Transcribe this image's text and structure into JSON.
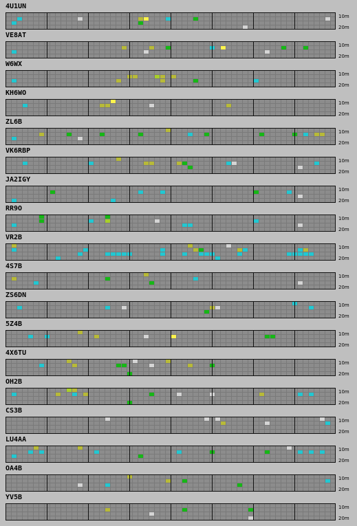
{
  "band_labels": {
    "top": "10m",
    "bottom": "20m"
  },
  "legend_colors": {
    "background": "#bfbfbf",
    "grid_cell": "#8c8c8c",
    "grid_line": "#7a7a7a",
    "grid_major": "#111111",
    "green": "#16b716",
    "yellow_green": "#a9cf2a",
    "olive": "#b8ba38",
    "cyan": "#22c8d2",
    "light_gray": "#d5d5d5",
    "bright_yellow": "#fff34d"
  },
  "stations": [
    {
      "callsign": "4U1UN",
      "cells": [
        {
          "col": 2,
          "row": 1,
          "color": "cyan"
        },
        {
          "col": 13,
          "row": 1,
          "color": "light_gray"
        },
        {
          "col": 24,
          "row": 1,
          "color": "olive"
        },
        {
          "col": 25,
          "row": 1,
          "color": "bright_yellow"
        },
        {
          "col": 29,
          "row": 1,
          "color": "cyan"
        },
        {
          "col": 34,
          "row": 1,
          "color": "green"
        },
        {
          "col": 58,
          "row": 1,
          "color": "light_gray"
        },
        {
          "col": 1,
          "row": 2,
          "color": "cyan"
        },
        {
          "col": 24,
          "row": 2,
          "color": "green"
        },
        {
          "col": 43,
          "row": 3,
          "color": "light_gray"
        },
        {
          "col": 1,
          "row": 4,
          "color": "cyan"
        },
        {
          "col": 16,
          "row": 4,
          "color": "cyan"
        },
        {
          "col": 25,
          "row": 4,
          "color": "light_gray"
        },
        {
          "col": 33,
          "row": 4,
          "color": "cyan"
        },
        {
          "col": 42,
          "row": 4,
          "color": "green"
        },
        {
          "col": 47,
          "row": 4,
          "color": "light_gray"
        },
        {
          "col": 53,
          "row": 4,
          "color": "green"
        }
      ]
    },
    {
      "callsign": "VE8AT",
      "cells": [
        {
          "col": 21,
          "row": 1,
          "color": "olive"
        },
        {
          "col": 26,
          "row": 1,
          "color": "olive"
        },
        {
          "col": 29,
          "row": 1,
          "color": "green"
        },
        {
          "col": 37,
          "row": 1,
          "color": "cyan"
        },
        {
          "col": 39,
          "row": 1,
          "color": "bright_yellow"
        },
        {
          "col": 50,
          "row": 1,
          "color": "green"
        },
        {
          "col": 54,
          "row": 1,
          "color": "green"
        },
        {
          "col": 1,
          "row": 2,
          "color": "cyan"
        },
        {
          "col": 25,
          "row": 2,
          "color": "light_gray"
        },
        {
          "col": 47,
          "row": 2,
          "color": "light_gray"
        },
        {
          "col": 40,
          "row": 4,
          "color": "green"
        },
        {
          "col": 42,
          "row": 4,
          "color": "light_gray"
        }
      ]
    },
    {
      "callsign": "W6WX",
      "cells": [
        {
          "col": 22,
          "row": 1,
          "color": "olive"
        },
        {
          "col": 23,
          "row": 1,
          "color": "olive"
        },
        {
          "col": 27,
          "row": 1,
          "color": "yellow_green"
        },
        {
          "col": 28,
          "row": 1,
          "color": "olive"
        },
        {
          "col": 30,
          "row": 1,
          "color": "olive"
        },
        {
          "col": 1,
          "row": 2,
          "color": "cyan"
        },
        {
          "col": 20,
          "row": 2,
          "color": "olive"
        },
        {
          "col": 28,
          "row": 2,
          "color": "olive"
        },
        {
          "col": 34,
          "row": 2,
          "color": "green"
        },
        {
          "col": 45,
          "row": 2,
          "color": "cyan"
        }
      ]
    },
    {
      "callsign": "KH6WO",
      "cells": [
        {
          "col": 19,
          "row": 0,
          "color": "bright_yellow"
        },
        {
          "col": 17,
          "row": 1,
          "color": "olive"
        },
        {
          "col": 18,
          "row": 1,
          "color": "olive"
        },
        {
          "col": 26,
          "row": 1,
          "color": "light_gray"
        },
        {
          "col": 40,
          "row": 1,
          "color": "olive"
        },
        {
          "col": 3,
          "row": 1,
          "color": "cyan"
        }
      ]
    },
    {
      "callsign": "ZL6B",
      "cells": [
        {
          "col": 29,
          "row": 0,
          "color": "olive"
        },
        {
          "col": 6,
          "row": 1,
          "color": "olive"
        },
        {
          "col": 11,
          "row": 1,
          "color": "green"
        },
        {
          "col": 17,
          "row": 1,
          "color": "green"
        },
        {
          "col": 24,
          "row": 1,
          "color": "green"
        },
        {
          "col": 33,
          "row": 1,
          "color": "cyan"
        },
        {
          "col": 36,
          "row": 1,
          "color": "green"
        },
        {
          "col": 46,
          "row": 1,
          "color": "green"
        },
        {
          "col": 52,
          "row": 1,
          "color": "green"
        },
        {
          "col": 54,
          "row": 1,
          "color": "cyan"
        },
        {
          "col": 56,
          "row": 1,
          "color": "olive"
        },
        {
          "col": 57,
          "row": 1,
          "color": "olive"
        },
        {
          "col": 1,
          "row": 2,
          "color": "cyan"
        },
        {
          "col": 13,
          "row": 2,
          "color": "light_gray"
        }
      ]
    },
    {
      "callsign": "VK6RBP",
      "cells": [
        {
          "col": 20,
          "row": 0,
          "color": "olive"
        },
        {
          "col": 25,
          "row": 1,
          "color": "olive"
        },
        {
          "col": 26,
          "row": 1,
          "color": "olive"
        },
        {
          "col": 31,
          "row": 1,
          "color": "olive"
        },
        {
          "col": 32,
          "row": 1,
          "color": "green"
        },
        {
          "col": 3,
          "row": 1,
          "color": "cyan"
        },
        {
          "col": 15,
          "row": 1,
          "color": "cyan"
        },
        {
          "col": 40,
          "row": 1,
          "color": "cyan"
        },
        {
          "col": 41,
          "row": 1,
          "color": "light_gray"
        },
        {
          "col": 56,
          "row": 1,
          "color": "cyan"
        },
        {
          "col": 33,
          "row": 2,
          "color": "green"
        },
        {
          "col": 53,
          "row": 2,
          "color": "light_gray"
        }
      ]
    },
    {
      "callsign": "JA2IGY",
      "cells": [
        {
          "col": 8,
          "row": 1,
          "color": "green"
        },
        {
          "col": 24,
          "row": 1,
          "color": "cyan"
        },
        {
          "col": 28,
          "row": 1,
          "color": "cyan"
        },
        {
          "col": 45,
          "row": 1,
          "color": "green"
        },
        {
          "col": 51,
          "row": 1,
          "color": "cyan"
        },
        {
          "col": 53,
          "row": 2,
          "color": "light_gray"
        },
        {
          "col": 19,
          "row": 3,
          "color": "cyan"
        },
        {
          "col": 1,
          "row": 3,
          "color": "cyan"
        }
      ]
    },
    {
      "callsign": "RR9O",
      "cells": [
        {
          "col": 6,
          "row": 0,
          "color": "green"
        },
        {
          "col": 18,
          "row": 0,
          "color": "green"
        },
        {
          "col": 6,
          "row": 1,
          "color": "green"
        },
        {
          "col": 18,
          "row": 1,
          "color": "yellow_green"
        },
        {
          "col": 15,
          "row": 1,
          "color": "cyan"
        },
        {
          "col": 27,
          "row": 1,
          "color": "light_gray"
        },
        {
          "col": 45,
          "row": 1,
          "color": "cyan"
        },
        {
          "col": 1,
          "row": 2,
          "color": "cyan"
        },
        {
          "col": 32,
          "row": 2,
          "color": "cyan"
        },
        {
          "col": 33,
          "row": 2,
          "color": "cyan"
        },
        {
          "col": 53,
          "row": 2,
          "color": "light_gray"
        }
      ]
    },
    {
      "callsign": "VR2B",
      "cells": [
        {
          "col": 1,
          "row": 0,
          "color": "olive"
        },
        {
          "col": 33,
          "row": 0,
          "color": "olive"
        },
        {
          "col": 40,
          "row": 0,
          "color": "light_gray"
        },
        {
          "col": 1,
          "row": 1,
          "color": "cyan"
        },
        {
          "col": 14,
          "row": 1,
          "color": "cyan"
        },
        {
          "col": 28,
          "row": 1,
          "color": "cyan"
        },
        {
          "col": 34,
          "row": 1,
          "color": "olive"
        },
        {
          "col": 35,
          "row": 1,
          "color": "green"
        },
        {
          "col": 42,
          "row": 1,
          "color": "olive"
        },
        {
          "col": 43,
          "row": 1,
          "color": "cyan"
        },
        {
          "col": 53,
          "row": 1,
          "color": "cyan"
        },
        {
          "col": 54,
          "row": 1,
          "color": "olive"
        },
        {
          "col": 13,
          "row": 2,
          "color": "cyan"
        },
        {
          "col": 18,
          "row": 2,
          "color": "cyan"
        },
        {
          "col": 19,
          "row": 2,
          "color": "cyan"
        },
        {
          "col": 20,
          "row": 2,
          "color": "cyan"
        },
        {
          "col": 21,
          "row": 2,
          "color": "cyan"
        },
        {
          "col": 22,
          "row": 2,
          "color": "cyan"
        },
        {
          "col": 28,
          "row": 2,
          "color": "cyan"
        },
        {
          "col": 32,
          "row": 2,
          "color": "cyan"
        },
        {
          "col": 35,
          "row": 2,
          "color": "cyan"
        },
        {
          "col": 36,
          "row": 2,
          "color": "cyan"
        },
        {
          "col": 37,
          "row": 2,
          "color": "cyan"
        },
        {
          "col": 42,
          "row": 2,
          "color": "cyan"
        },
        {
          "col": 51,
          "row": 2,
          "color": "cyan"
        },
        {
          "col": 52,
          "row": 2,
          "color": "cyan"
        },
        {
          "col": 53,
          "row": 2,
          "color": "cyan"
        },
        {
          "col": 54,
          "row": 2,
          "color": "cyan"
        },
        {
          "col": 55,
          "row": 2,
          "color": "cyan"
        },
        {
          "col": 9,
          "row": 3,
          "color": "cyan"
        },
        {
          "col": 38,
          "row": 3,
          "color": "cyan"
        }
      ]
    },
    {
      "callsign": "4S7B",
      "cells": [
        {
          "col": 1,
          "row": 1,
          "color": "olive"
        },
        {
          "col": 18,
          "row": 1,
          "color": "green"
        },
        {
          "col": 25,
          "row": 0,
          "color": "olive"
        },
        {
          "col": 34,
          "row": 1,
          "color": "cyan"
        },
        {
          "col": 5,
          "row": 2,
          "color": "cyan"
        },
        {
          "col": 26,
          "row": 2,
          "color": "green"
        },
        {
          "col": 53,
          "row": 2,
          "color": "light_gray"
        }
      ]
    },
    {
      "callsign": "ZS6DN",
      "cells": [
        {
          "col": 52,
          "row": 0,
          "color": "cyan"
        },
        {
          "col": 18,
          "row": 1,
          "color": "cyan"
        },
        {
          "col": 21,
          "row": 1,
          "color": "light_gray"
        },
        {
          "col": 37,
          "row": 1,
          "color": "olive"
        },
        {
          "col": 38,
          "row": 1,
          "color": "light_gray"
        },
        {
          "col": 2,
          "row": 1,
          "color": "cyan"
        },
        {
          "col": 36,
          "row": 2,
          "color": "green"
        },
        {
          "col": 55,
          "row": 1,
          "color": "cyan"
        }
      ]
    },
    {
      "callsign": "5Z4B",
      "cells": [
        {
          "col": 13,
          "row": 0,
          "color": "olive"
        },
        {
          "col": 4,
          "row": 1,
          "color": "cyan"
        },
        {
          "col": 7,
          "row": 1,
          "color": "cyan"
        },
        {
          "col": 16,
          "row": 1,
          "color": "olive"
        },
        {
          "col": 25,
          "row": 1,
          "color": "light_gray"
        },
        {
          "col": 30,
          "row": 1,
          "color": "bright_yellow"
        },
        {
          "col": 47,
          "row": 1,
          "color": "green"
        },
        {
          "col": 48,
          "row": 1,
          "color": "green"
        }
      ]
    },
    {
      "callsign": "4X6TU",
      "cells": [
        {
          "col": 11,
          "row": 0,
          "color": "olive"
        },
        {
          "col": 23,
          "row": 0,
          "color": "light_gray"
        },
        {
          "col": 29,
          "row": 0,
          "color": "olive"
        },
        {
          "col": 12,
          "row": 1,
          "color": "olive"
        },
        {
          "col": 20,
          "row": 1,
          "color": "green"
        },
        {
          "col": 21,
          "row": 1,
          "color": "green"
        },
        {
          "col": 26,
          "row": 1,
          "color": "light_gray"
        },
        {
          "col": 33,
          "row": 1,
          "color": "olive"
        },
        {
          "col": 37,
          "row": 1,
          "color": "green"
        },
        {
          "col": 6,
          "row": 1,
          "color": "cyan"
        },
        {
          "col": 22,
          "row": 3,
          "color": "green"
        }
      ]
    },
    {
      "callsign": "OH2B",
      "cells": [
        {
          "col": 11,
          "row": 0,
          "color": "yellow_green"
        },
        {
          "col": 12,
          "row": 0,
          "color": "olive"
        },
        {
          "col": 1,
          "row": 1,
          "color": "cyan"
        },
        {
          "col": 9,
          "row": 1,
          "color": "olive"
        },
        {
          "col": 12,
          "row": 1,
          "color": "cyan"
        },
        {
          "col": 14,
          "row": 1,
          "color": "olive"
        },
        {
          "col": 26,
          "row": 1,
          "color": "green"
        },
        {
          "col": 31,
          "row": 1,
          "color": "light_gray"
        },
        {
          "col": 37,
          "row": 1,
          "color": "light_gray"
        },
        {
          "col": 46,
          "row": 1,
          "color": "olive"
        },
        {
          "col": 53,
          "row": 1,
          "color": "cyan"
        },
        {
          "col": 55,
          "row": 1,
          "color": "cyan"
        },
        {
          "col": 22,
          "row": 3,
          "color": "green"
        }
      ]
    },
    {
      "callsign": "CS3B",
      "cells": [
        {
          "col": 18,
          "row": 0,
          "color": "light_gray"
        },
        {
          "col": 36,
          "row": 0,
          "color": "light_gray"
        },
        {
          "col": 38,
          "row": 0,
          "color": "light_gray"
        },
        {
          "col": 57,
          "row": 0,
          "color": "light_gray"
        },
        {
          "col": 39,
          "row": 1,
          "color": "olive"
        },
        {
          "col": 47,
          "row": 1,
          "color": "light_gray"
        },
        {
          "col": 58,
          "row": 1,
          "color": "cyan"
        }
      ]
    },
    {
      "callsign": "LU4AA",
      "cells": [
        {
          "col": 5,
          "row": 0,
          "color": "olive"
        },
        {
          "col": 13,
          "row": 0,
          "color": "olive"
        },
        {
          "col": 4,
          "row": 1,
          "color": "cyan"
        },
        {
          "col": 6,
          "row": 1,
          "color": "cyan"
        },
        {
          "col": 16,
          "row": 1,
          "color": "cyan"
        },
        {
          "col": 31,
          "row": 1,
          "color": "cyan"
        },
        {
          "col": 37,
          "row": 1,
          "color": "green"
        },
        {
          "col": 47,
          "row": 1,
          "color": "green"
        },
        {
          "col": 51,
          "row": 0,
          "color": "light_gray"
        },
        {
          "col": 53,
          "row": 1,
          "color": "cyan"
        },
        {
          "col": 55,
          "row": 1,
          "color": "cyan"
        },
        {
          "col": 57,
          "row": 1,
          "color": "cyan"
        },
        {
          "col": 1,
          "row": 2,
          "color": "cyan"
        },
        {
          "col": 24,
          "row": 2,
          "color": "green"
        }
      ]
    },
    {
      "callsign": "OA4B",
      "cells": [
        {
          "col": 22,
          "row": 0,
          "color": "olive"
        },
        {
          "col": 13,
          "row": 2,
          "color": "light_gray"
        },
        {
          "col": 18,
          "row": 2,
          "color": "cyan"
        },
        {
          "col": 29,
          "row": 1,
          "color": "olive"
        },
        {
          "col": 32,
          "row": 1,
          "color": "green"
        },
        {
          "col": 42,
          "row": 2,
          "color": "green"
        },
        {
          "col": 58,
          "row": 1,
          "color": "cyan"
        }
      ]
    },
    {
      "callsign": "YV5B",
      "cells": [
        {
          "col": 18,
          "row": 1,
          "color": "olive"
        },
        {
          "col": 32,
          "row": 1,
          "color": "green"
        },
        {
          "col": 44,
          "row": 1,
          "color": "green"
        },
        {
          "col": 26,
          "row": 2,
          "color": "light_gray"
        },
        {
          "col": 44,
          "row": 3,
          "color": "light_gray"
        }
      ]
    }
  ]
}
